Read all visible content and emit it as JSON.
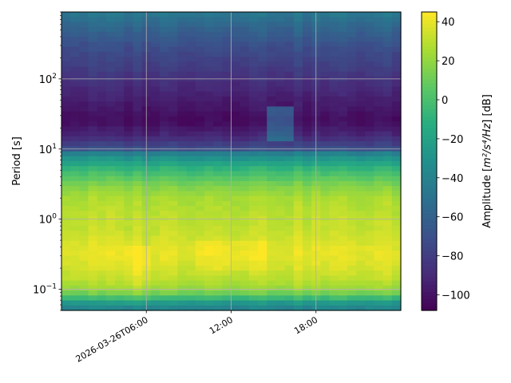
{
  "chart_data": {
    "type": "heatmap",
    "title": "",
    "xlabel": "",
    "ylabel": "Period [s]",
    "y_scale": "log",
    "ylim": [
      0.05,
      900
    ],
    "x_ticks": [
      {
        "time": "2026-03-26T06:00",
        "label": "2026-03-26T06:00"
      },
      {
        "time": "2026-03-26T12:00",
        "label": "12:00"
      },
      {
        "time": "2026-03-26T18:00",
        "label": "18:00"
      }
    ],
    "xlim": [
      "2026-03-26T00:00",
      "2026-03-27T00:00"
    ],
    "y_ticks": [
      {
        "value": 0.1,
        "base": "10",
        "exp": "−1"
      },
      {
        "value": 1,
        "base": "10",
        "exp": "0"
      },
      {
        "value": 10,
        "base": "10",
        "exp": "1"
      },
      {
        "value": 100,
        "base": "10",
        "exp": "2"
      }
    ],
    "grid": true,
    "colormap": "viridis",
    "colorbar": {
      "label_prefix": "Amplitude [",
      "label_math": "m²/s⁴/Hz",
      "label_suffix": "] [dB]",
      "range": [
        -108,
        45
      ],
      "ticks": [
        -100,
        -80,
        -60,
        -40,
        -20,
        0,
        20,
        40
      ],
      "tick_labels": [
        "−100",
        "−80",
        "−60",
        "−40",
        "−20",
        "0",
        "20",
        "40"
      ]
    },
    "profile": [
      {
        "period": 0.05,
        "db": -42
      },
      {
        "period": 0.065,
        "db": -25
      },
      {
        "period": 0.08,
        "db": 5
      },
      {
        "period": 0.1,
        "db": 22
      },
      {
        "period": 0.15,
        "db": 32
      },
      {
        "period": 0.25,
        "db": 38
      },
      {
        "period": 0.35,
        "db": 40
      },
      {
        "period": 0.5,
        "db": 36
      },
      {
        "period": 0.7,
        "db": 32
      },
      {
        "period": 1.0,
        "db": 31
      },
      {
        "period": 2.0,
        "db": 26
      },
      {
        "period": 3.0,
        "db": 16
      },
      {
        "period": 5.0,
        "db": -5
      },
      {
        "period": 7.0,
        "db": -25
      },
      {
        "period": 9.0,
        "db": -45
      },
      {
        "period": 10.0,
        "db": -70
      },
      {
        "period": 15.0,
        "db": -90
      },
      {
        "period": 25.0,
        "db": -103
      },
      {
        "period": 50.0,
        "db": -95
      },
      {
        "period": 100.0,
        "db": -85
      },
      {
        "period": 300.0,
        "db": -70
      },
      {
        "period": 600.0,
        "db": -55
      },
      {
        "period": 900.0,
        "db": -45
      }
    ],
    "events": [
      {
        "start": "2026-03-26T04:30",
        "end": "2026-03-26T06:30",
        "period_min": 0.06,
        "period_max": 0.4,
        "db_boost": 6
      },
      {
        "start": "2026-03-26T09:30",
        "end": "2026-03-26T14:30",
        "period_min": 0.2,
        "period_max": 0.5,
        "db_boost": 4
      },
      {
        "start": "2026-03-26T14:30",
        "end": "2026-03-26T16:30",
        "period_min": 12,
        "period_max": 40,
        "db_boost": 35
      }
    ]
  }
}
